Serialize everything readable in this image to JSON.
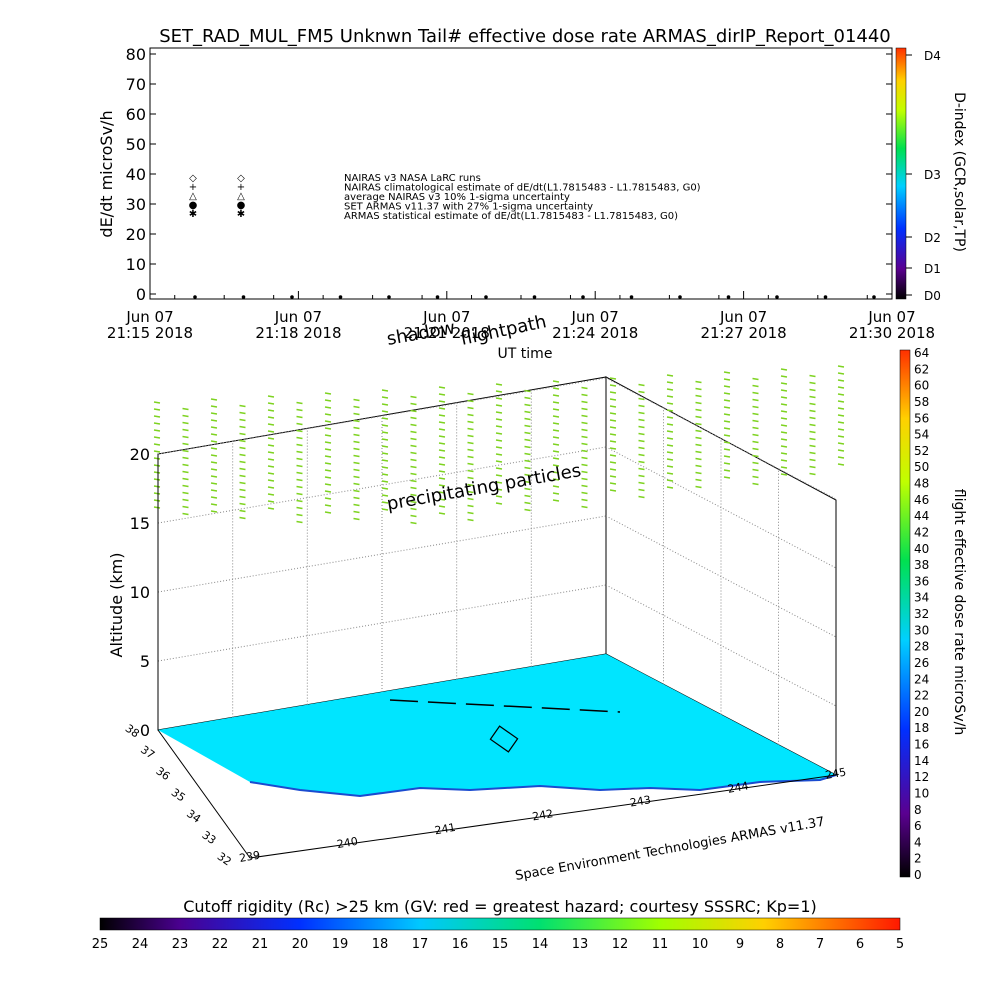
{
  "title": "SET_RAD_MUL_FM5 Unknwn Tail#  effective dose rate ARMAS_dirIP_Report_01440",
  "top_plot": {
    "ylabel": "dE/dt microSv/h",
    "xlabel": "UT time",
    "y_ticks": [
      "0",
      "10",
      "20",
      "30",
      "40",
      "50",
      "60",
      "70",
      "80"
    ],
    "x_ticks": [
      {
        "l1": "Jun 07",
        "l2": "21:15 2018"
      },
      {
        "l1": "Jun 07",
        "l2": "21:18 2018"
      },
      {
        "l1": "Jun 07",
        "l2": "21:21 2018"
      },
      {
        "l1": "Jun 07",
        "l2": "21:24 2018"
      },
      {
        "l1": "Jun 07",
        "l2": "21:27 2018"
      },
      {
        "l1": "Jun 07",
        "l2": "21:30 2018"
      }
    ],
    "legend": [
      {
        "marker": "◇",
        "text": "NAIRAS v3 NASA LaRC runs"
      },
      {
        "marker": "+",
        "text": "NAIRAS climatological estimate of dE/dt(L1.7815483 - L1.7815483, G0)"
      },
      {
        "marker": "△",
        "text": "average NAIRAS v3 10% 1-sigma uncertainty"
      },
      {
        "marker": "●",
        "text": "SET ARMAS v11.37 with 27% 1-sigma uncertainty"
      },
      {
        "marker": "✱",
        "text": "ARMAS statistical estimate of dE/dt(L1.7815483 - L1.7815483, G0)"
      }
    ],
    "right_axis_label": "D-index (GCR,solar,TP)",
    "right_ticks": [
      "D0",
      "D1",
      "D2",
      "D3",
      "D4"
    ]
  },
  "chart_data": [
    {
      "type": "scatter",
      "title": "SET_RAD_MUL_FM5 Unknwn Tail#  effective dose rate ARMAS_dirIP_Report_01440",
      "xlabel": "UT time",
      "ylabel": "dE/dt microSv/h",
      "ylim": [
        0,
        80
      ],
      "series": [
        {
          "name": "NAIRAS v3 NASA LaRC runs",
          "values": [
            39,
            39
          ]
        },
        {
          "name": "NAIRAS climatological estimate of dE/dt(L1.7815483 - L1.7815483, G0)",
          "values": [
            36,
            36
          ]
        },
        {
          "name": "average NAIRAS v3 10% 1-sigma uncertainty",
          "values": [
            33,
            33
          ]
        },
        {
          "name": "SET ARMAS v11.37 with 27% 1-sigma uncertainty",
          "values": [
            30,
            30
          ]
        },
        {
          "name": "ARMAS statistical estimate of dE/dt(L1.7815483 - L1.7815483, G0)",
          "values": [
            27,
            27
          ]
        }
      ]
    }
  ],
  "bottom_plot": {
    "annotations": [
      "shadow",
      "flightpath",
      "precipitating particles"
    ],
    "ylabel": "Altitude (km)",
    "z_ticks": [
      "0",
      "5",
      "10",
      "15",
      "20"
    ],
    "lat_ticks": [
      "38",
      "37",
      "36",
      "35",
      "34",
      "33",
      "32"
    ],
    "lon_ticks": [
      "239",
      "240",
      "241",
      "242",
      "243",
      "244",
      "245"
    ],
    "credit": "Space Environment Technologies ARMAS v11.37",
    "right_axis_label": "flight effective dose rate microSv/h",
    "right_ticks": [
      "0",
      "2",
      "4",
      "6",
      "8",
      "10",
      "12",
      "14",
      "16",
      "18",
      "20",
      "22",
      "24",
      "26",
      "28",
      "30",
      "32",
      "34",
      "36",
      "38",
      "40",
      "42",
      "44",
      "46",
      "48",
      "50",
      "52",
      "54",
      "56",
      "58",
      "60",
      "62",
      "64"
    ],
    "marker_color": "#7ed321",
    "surface_color": "#00e5ff"
  },
  "cutoff": {
    "label": "Cutoff rigidity (Rc) >25 km (GV: red = greatest hazard; courtesy SSSRC; Kp=1)",
    "ticks": [
      "25",
      "24",
      "23",
      "22",
      "21",
      "20",
      "19",
      "18",
      "17",
      "16",
      "15",
      "14",
      "13",
      "12",
      "11",
      "10",
      "9",
      "8",
      "7",
      "6",
      "5"
    ]
  }
}
